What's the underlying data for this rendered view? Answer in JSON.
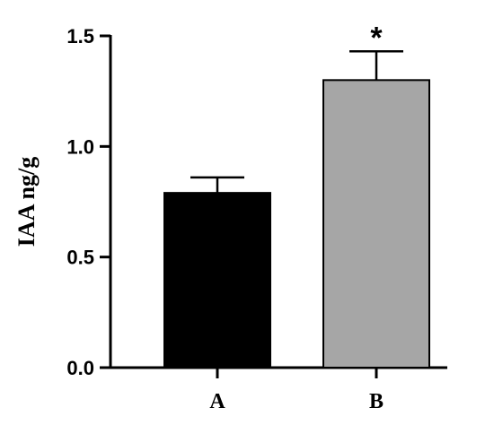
{
  "chart_data": {
    "type": "bar",
    "categories": [
      "A",
      "B"
    ],
    "values": [
      0.79,
      1.3
    ],
    "errors": [
      0.07,
      0.13
    ],
    "ylabel": "IAA ng/g",
    "xlabel": "",
    "ylim": [
      0,
      1.5
    ],
    "yticks": [
      0.0,
      0.5,
      1.0,
      1.5
    ],
    "ytick_labels": [
      "0.0",
      "0.5",
      "1.0",
      "1.5"
    ],
    "bar_colors": [
      "#000000",
      "#a6a6a6"
    ],
    "annotations": [
      {
        "category": "B",
        "text": "*"
      }
    ],
    "grid": false,
    "legend": "none"
  }
}
